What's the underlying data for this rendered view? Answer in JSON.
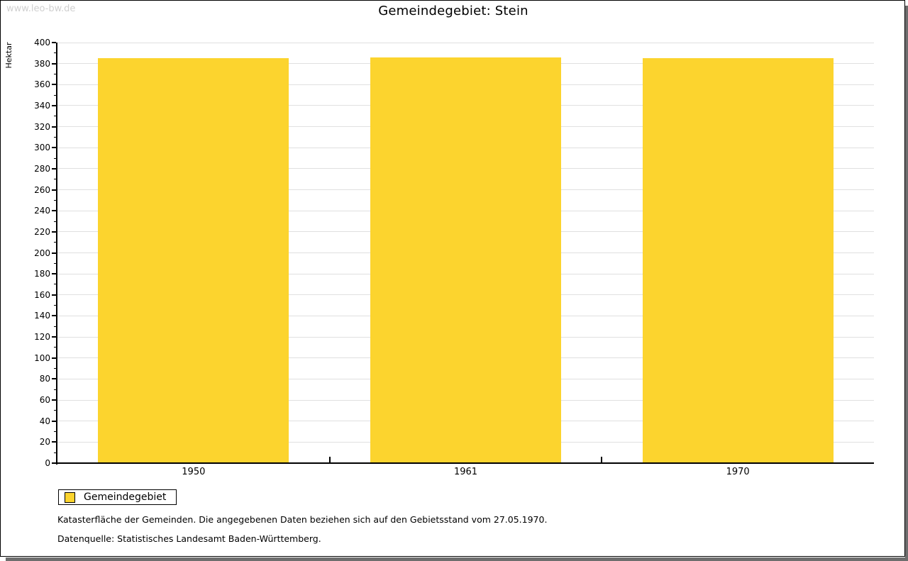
{
  "watermark": "www.leo-bw.de",
  "title": "Gemeindegebiet: Stein",
  "chart_data": {
    "type": "bar",
    "title": "Gemeindegebiet: Stein",
    "categories": [
      "1950",
      "1961",
      "1970"
    ],
    "series": [
      {
        "name": "Gemeindegebiet",
        "values": [
          385,
          386,
          385
        ]
      }
    ],
    "xlabel": "",
    "ylabel": "Hektar",
    "ylim": [
      0,
      400
    ],
    "ytick_major_step": 20,
    "ytick_minor_step": 10,
    "grid": "horizontal",
    "legend_position": "bottom-left"
  },
  "legend": {
    "items": [
      {
        "label": "Gemeindegebiet",
        "color": "#fcd42e"
      }
    ]
  },
  "footnotes": [
    "Katasterfläche der Gemeinden. Die angegebenen Daten beziehen sich auf den Gebietsstand vom 27.05.1970.",
    "Datenquelle: Statistisches Landesamt Baden-Württemberg."
  ],
  "colors": {
    "bar": "#fcd42e",
    "grid": "#e0e0e0",
    "axis": "#000000",
    "text": "#000000",
    "watermark": "#d0d0d0",
    "shadow": "#6e6e6e",
    "background": "#ffffff"
  }
}
